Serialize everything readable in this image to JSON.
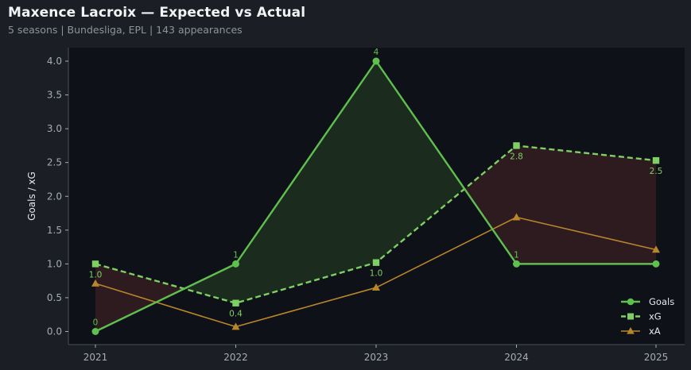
{
  "header": {
    "title": "Maxence Lacroix — Expected vs Actual",
    "subtitle": "5 seasons | Bundesliga, EPL | 143 appearances"
  },
  "colors": {
    "background": "#1b1e25",
    "plot_bg": "#0e1117",
    "goals": "#5fbf4f",
    "xg": "#7ed064",
    "xa": "#b8862a",
    "over_fill": "#1c2e1f",
    "under_fill": "#2f1c20"
  },
  "chart_data": {
    "type": "line",
    "x": [
      "2021",
      "2022",
      "2023",
      "2024",
      "2025"
    ],
    "ylabel": "Goals / xG",
    "ylim": [
      -0.16,
      4.2
    ],
    "yticks": [
      "0.0",
      "0.5",
      "1.0",
      "1.5",
      "2.0",
      "2.5",
      "3.0",
      "3.5",
      "4.0"
    ],
    "grid": false,
    "legend_position": "bottom-right",
    "series": [
      {
        "name": "Goals",
        "values": [
          0,
          1,
          4,
          1,
          1
        ],
        "labels": [
          "0",
          "1",
          "4",
          "1",
          ""
        ],
        "marker": "circle",
        "style": "solid"
      },
      {
        "name": "xG",
        "values": [
          1.0,
          0.42,
          1.02,
          2.75,
          2.53
        ],
        "labels": [
          "1.0",
          "0.4",
          "1.0",
          "2.8",
          "2.5"
        ],
        "marker": "square",
        "style": "dashed"
      },
      {
        "name": "xA",
        "values": [
          0.71,
          0.07,
          0.65,
          1.69,
          1.21
        ],
        "marker": "triangle",
        "style": "solid"
      }
    ]
  }
}
